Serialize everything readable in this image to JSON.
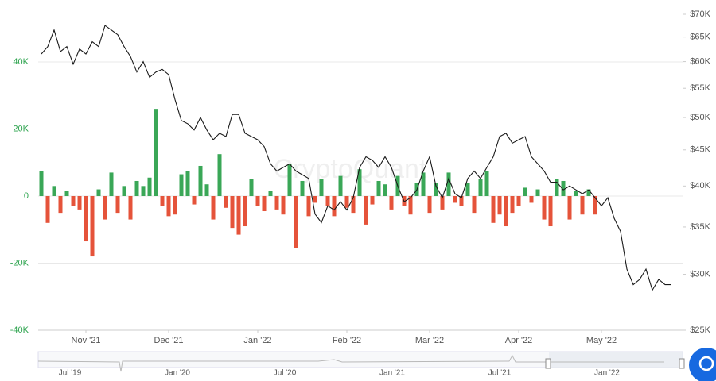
{
  "chart_data": {
    "type": "bar",
    "watermark": "CryptoQuant",
    "categories": [
      null,
      null,
      null,
      null,
      null,
      null,
      null,
      "Nov '21",
      null,
      null,
      null,
      null,
      null,
      null,
      null,
      null,
      null,
      null,
      null,
      null,
      "Dec '21",
      null,
      null,
      null,
      null,
      null,
      null,
      null,
      null,
      null,
      null,
      null,
      null,
      null,
      "Jan '22",
      null,
      null,
      null,
      null,
      null,
      null,
      null,
      null,
      null,
      null,
      null,
      null,
      null,
      "Feb '22",
      null,
      null,
      null,
      null,
      null,
      null,
      null,
      null,
      null,
      null,
      null,
      null,
      "Mar '22",
      null,
      null,
      null,
      null,
      null,
      null,
      null,
      null,
      null,
      null,
      null,
      null,
      null,
      "Apr '22",
      null,
      null,
      null,
      null,
      null,
      null,
      null,
      null,
      null,
      null,
      null,
      null,
      "May '22",
      null,
      null,
      null,
      null,
      null,
      null,
      null,
      null,
      null,
      null,
      null
    ],
    "series": [
      {
        "type": "bar",
        "color": "#3aa757",
        "negative_color": "#e5533a",
        "values": [
          7500,
          -8000,
          3000,
          -5000,
          1500,
          -3000,
          -4000,
          -13500,
          -18000,
          2000,
          -7000,
          7000,
          -5000,
          3000,
          -7000,
          4500,
          3000,
          5500,
          26000,
          -3000,
          -6000,
          -5500,
          6500,
          7500,
          -2500,
          9000,
          3500,
          -7000,
          12500,
          -3500,
          -9500,
          -11500,
          -9000,
          5000,
          -3000,
          -4500,
          1500,
          -4000,
          -5500,
          9500,
          -15500,
          4500,
          -6000,
          -2000,
          5000,
          -3000,
          -6000,
          6000,
          -3500,
          -5000,
          8000,
          -8500,
          -2500,
          4500,
          3500,
          -4000,
          6000,
          -3000,
          -5500,
          4000,
          7000,
          -5000,
          4000,
          -4000,
          7000,
          -2000,
          -3000,
          4000,
          -5000,
          5000,
          7500,
          -8000,
          -5500,
          -9000,
          -5000,
          -3000,
          2500,
          -2000,
          2000,
          -7000,
          -9000,
          5000,
          4500,
          -7000,
          1500,
          -5500,
          2000,
          -5500,
          null,
          null,
          null,
          null,
          null,
          null,
          null,
          null,
          null,
          null,
          null,
          null
        ]
      },
      {
        "type": "line",
        "axis": "y2",
        "color": "#1a1a1a",
        "values": [
          61500,
          63000,
          66500,
          62000,
          63000,
          59500,
          62500,
          61500,
          64000,
          63000,
          67500,
          66500,
          65500,
          63000,
          61000,
          58000,
          60000,
          57000,
          58000,
          58500,
          57500,
          53000,
          49500,
          49000,
          48000,
          50000,
          48000,
          46500,
          47500,
          47000,
          50500,
          50500,
          47500,
          47000,
          46500,
          45500,
          43000,
          42000,
          42500,
          43000,
          42000,
          41500,
          41000,
          36500,
          35500,
          37500,
          37000,
          38000,
          37000,
          38500,
          42500,
          44000,
          43500,
          42500,
          44000,
          42500,
          40000,
          38000,
          38500,
          39500,
          42000,
          44000,
          40000,
          38500,
          41000,
          39000,
          38500,
          41000,
          42000,
          41000,
          42500,
          44000,
          47000,
          47500,
          46000,
          46500,
          47000,
          44000,
          43000,
          42000,
          40500,
          40500,
          39500,
          40000,
          39500,
          39000,
          39500,
          38500,
          37500,
          38500,
          36000,
          34500,
          30500,
          29000,
          29500,
          30500,
          28500,
          29500,
          29000,
          29000
        ]
      }
    ],
    "ylim": [
      -40000,
      54200
    ],
    "yticks": [
      {
        "value": -40000,
        "label": "-40K"
      },
      {
        "value": -20000,
        "label": "-20K"
      },
      0,
      {
        "value": 20000,
        "label": "20K"
      },
      {
        "value": 40000,
        "label": "40K"
      }
    ],
    "y2lim": [
      25000,
      70000
    ],
    "y2log": true,
    "y2ticks": [
      {
        "value": 25000,
        "label": "$25K"
      },
      {
        "value": 30000,
        "label": "$30K"
      },
      {
        "value": 35000,
        "label": "$35K"
      },
      {
        "value": 40000,
        "label": "$40K"
      },
      {
        "value": 45000,
        "label": "$45K"
      },
      {
        "value": 50000,
        "label": "$50K"
      },
      {
        "value": 55000,
        "label": "$55K"
      },
      {
        "value": 60000,
        "label": "$60K"
      },
      {
        "value": 65000,
        "label": "$65K"
      },
      {
        "value": 70000,
        "label": "$70K"
      }
    ],
    "grid": true,
    "navigator_labels": [
      "Jul '19",
      "Jan '20",
      "Jul '20",
      "Jan '21",
      "Jul '21",
      "Jan '22"
    ]
  }
}
